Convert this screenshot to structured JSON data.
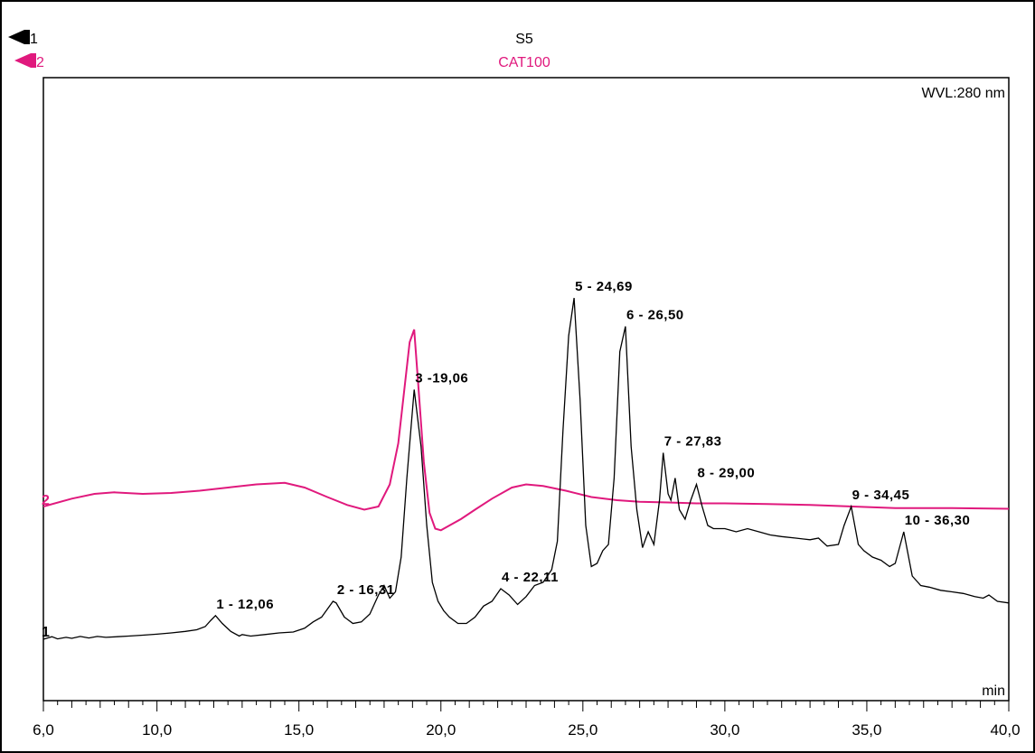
{
  "chart_data": {
    "type": "line",
    "xlim": [
      6.0,
      40.0
    ],
    "ylim": [
      0,
      100
    ],
    "x_ticks": [
      "6,0",
      "10,0",
      "15,0",
      "20,0",
      "25,0",
      "30,0",
      "35,0",
      "40,0"
    ],
    "x_tick_values": [
      6,
      10,
      15,
      20,
      25,
      30,
      35,
      40
    ],
    "x_unit": "min",
    "wavelength_label": "WVL:280 nm",
    "colors": {
      "trace1": "#000000",
      "trace2": "#e0197d"
    },
    "series": [
      {
        "name": "S5",
        "index": "1",
        "color": "#000000",
        "x": [
          6.0,
          6.3,
          6.5,
          6.8,
          7.0,
          7.3,
          7.6,
          7.9,
          8.2,
          8.6,
          9.0,
          9.5,
          10.0,
          10.5,
          11.0,
          11.4,
          11.7,
          11.9,
          12.06,
          12.3,
          12.6,
          12.9,
          13.0,
          13.3,
          13.8,
          14.3,
          14.8,
          15.2,
          15.5,
          15.8,
          16.0,
          16.2,
          16.31,
          16.6,
          16.9,
          17.2,
          17.5,
          17.8,
          18.0,
          18.2,
          18.4,
          18.6,
          18.8,
          19.06,
          19.3,
          19.5,
          19.7,
          19.9,
          20.1,
          20.3,
          20.6,
          20.9,
          21.2,
          21.5,
          21.8,
          22.11,
          22.4,
          22.7,
          23.0,
          23.3,
          23.6,
          23.9,
          24.1,
          24.3,
          24.5,
          24.69,
          24.9,
          25.1,
          25.3,
          25.5,
          25.7,
          25.9,
          26.1,
          26.3,
          26.5,
          26.7,
          26.9,
          27.1,
          27.3,
          27.5,
          27.7,
          27.83,
          28.0,
          28.1,
          28.25,
          28.4,
          28.6,
          28.8,
          29.0,
          29.2,
          29.4,
          29.6,
          30.0,
          30.4,
          30.8,
          31.2,
          31.6,
          32.0,
          32.5,
          33.0,
          33.3,
          33.6,
          34.0,
          34.2,
          34.45,
          34.7,
          34.9,
          35.2,
          35.5,
          35.8,
          36.0,
          36.3,
          36.6,
          36.9,
          37.2,
          37.6,
          38.0,
          38.4,
          38.8,
          39.1,
          39.3,
          39.6,
          40.0
        ],
        "y": [
          4.0,
          4.8,
          4.1,
          4.6,
          4.3,
          4.9,
          4.4,
          4.9,
          4.6,
          4.8,
          5.0,
          5.3,
          5.6,
          6.0,
          6.5,
          7.0,
          8.0,
          10.0,
          11.5,
          9.0,
          6.5,
          5.0,
          5.5,
          5.0,
          5.5,
          6.0,
          6.3,
          7.5,
          9.5,
          11.0,
          13.5,
          16.0,
          15.5,
          11.0,
          9.0,
          9.5,
          12.0,
          18.0,
          21.0,
          17.0,
          19.0,
          30.0,
          55.0,
          83.0,
          65.0,
          40.0,
          22.0,
          16.0,
          13.0,
          11.0,
          9.0,
          9.0,
          11.0,
          14.5,
          16.0,
          20.0,
          18.0,
          15.0,
          17.5,
          21.0,
          22.0,
          26.0,
          35.0,
          70.0,
          100.0,
          112.0,
          80.0,
          40.0,
          27.0,
          28.0,
          32.0,
          34.0,
          55.0,
          95.0,
          103.0,
          65.0,
          45.0,
          33.0,
          38.0,
          34.0,
          48.0,
          63.0,
          50.0,
          48.0,
          55.0,
          45.0,
          42.0,
          48.0,
          53.0,
          46.0,
          40.0,
          39.0,
          39.0,
          38.0,
          39.0,
          38.0,
          37.0,
          36.5,
          36.0,
          35.5,
          36.0,
          33.5,
          34.0,
          40.0,
          46.0,
          34.0,
          32.0,
          30.0,
          29.0,
          27.0,
          28.0,
          38.0,
          24.0,
          21.0,
          20.5,
          19.5,
          19.0,
          18.5,
          17.5,
          17.0,
          18.0,
          16.0,
          15.5
        ],
        "labels": [
          {
            "text": "1 - 12,06",
            "x": 12.06,
            "y": 11.5
          },
          {
            "text": "2 - 16,31",
            "x": 16.31,
            "y": 16.0
          },
          {
            "text": "3 -19,06",
            "x": 19.06,
            "y": 83.0
          },
          {
            "text": "4 - 22,11",
            "x": 22.11,
            "y": 20.0
          },
          {
            "text": "5 - 24,69",
            "x": 24.69,
            "y": 112.0
          },
          {
            "text": "6 - 26,50",
            "x": 26.5,
            "y": 103.0
          },
          {
            "text": "7 - 27,83",
            "x": 27.83,
            "y": 63.0
          },
          {
            "text": "8 - 29,00",
            "x": 29.0,
            "y": 53.0
          },
          {
            "text": "9 - 34,45",
            "x": 34.45,
            "y": 46.0
          },
          {
            "text": "10 - 36,30",
            "x": 36.3,
            "y": 38.0
          }
        ]
      },
      {
        "name": "CAT100",
        "index": "2",
        "color": "#e0197d",
        "x": [
          6.0,
          7.0,
          7.8,
          8.5,
          9.5,
          10.5,
          11.5,
          12.5,
          13.5,
          14.5,
          15.2,
          16.0,
          16.7,
          17.3,
          17.8,
          18.2,
          18.5,
          18.7,
          18.9,
          19.06,
          19.2,
          19.4,
          19.6,
          19.8,
          20.0,
          20.3,
          20.7,
          21.2,
          21.8,
          22.5,
          23.0,
          23.6,
          24.4,
          25.3,
          26.2,
          27.0,
          28.0,
          29.0,
          30.0,
          31.5,
          33.0,
          34.5,
          36.0,
          38.0,
          40.0
        ],
        "y": [
          46.0,
          48.5,
          50.0,
          50.5,
          50.0,
          50.3,
          51.0,
          52.0,
          53.0,
          53.5,
          52.0,
          49.0,
          46.5,
          45.0,
          46.0,
          53.0,
          66.0,
          82.0,
          98.0,
          102.0,
          85.0,
          60.0,
          44.0,
          39.0,
          38.5,
          40.0,
          42.0,
          45.0,
          48.5,
          52.0,
          53.0,
          52.5,
          51.0,
          49.0,
          48.0,
          47.5,
          47.3,
          47.0,
          47.0,
          46.8,
          46.5,
          46.0,
          45.5,
          45.5,
          45.3
        ]
      }
    ]
  }
}
